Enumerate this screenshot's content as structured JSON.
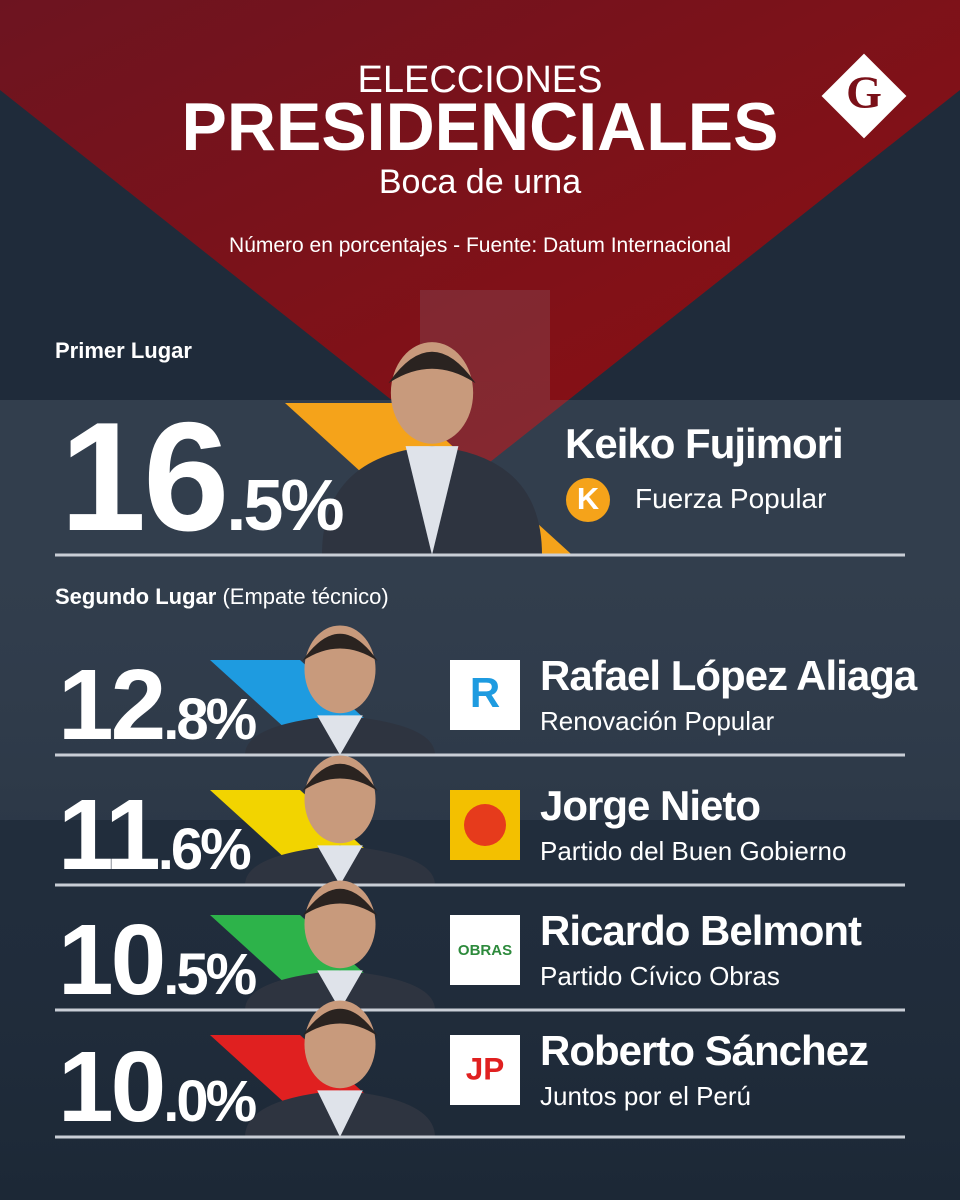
{
  "header": {
    "kicker": "ELECCIONES",
    "title": "PRESIDENCIALES",
    "subtitle": "Boca de urna",
    "source": "Número en porcentajes - Fuente: Datum Internacional",
    "logo": "G"
  },
  "first_place": {
    "label": "Primer Lugar",
    "candidate": {
      "name": "Keiko Fujimori",
      "party": "Fuerza Popular",
      "logo_text": "K",
      "percent_int": "16",
      "percent_rest": ".5%",
      "color": "#f5a31a"
    }
  },
  "second_place": {
    "label": "Segundo Lugar",
    "note": "(Empate técnico)",
    "candidates": [
      {
        "name": "Rafael López Aliaga",
        "party": "Renovación Popular",
        "logo_text": "R",
        "percent_int": "12",
        "percent_rest": ".8%",
        "color": "#1e9be0"
      },
      {
        "name": "Jorge Nieto",
        "party": "Partido del Buen Gobierno",
        "percent_int": "11",
        "percent_rest": ".6%",
        "color": "#f2d400"
      },
      {
        "name": "Ricardo Belmont",
        "party": "Partido Cívico Obras",
        "logo_text": "OBRAS",
        "percent_int": "10",
        "percent_rest": ".5%",
        "color": "#2db34a"
      },
      {
        "name": "Roberto Sánchez",
        "party": "Juntos por el Perú",
        "logo_text": "JP",
        "percent_int": "10",
        "percent_rest": ".0%",
        "color": "#e02020"
      }
    ]
  }
}
